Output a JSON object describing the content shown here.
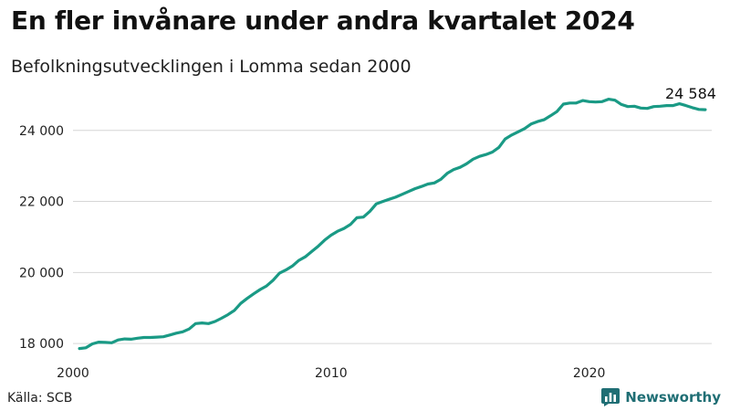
{
  "title": "En fler invånare under andra kvartalet 2024",
  "subtitle": "Befolkningsutvecklingen i Lomma sedan 2000",
  "source": "Källa: SCB",
  "brand": "Newsworthy",
  "colors": {
    "line": "#1a9a85",
    "grid": "#d6d6d6",
    "brand": "#1f6e74"
  },
  "chart_data": {
    "type": "line",
    "title": "En fler invånare under andra kvartalet 2024",
    "subtitle": "Befolkningsutvecklingen i Lomma sedan 2000",
    "xlabel": "",
    "ylabel": "",
    "x_ticks": [
      2000,
      2010,
      2020
    ],
    "x_tick_labels": [
      "2000",
      "2010",
      "2020"
    ],
    "y_ticks": [
      18000,
      20000,
      22000,
      24000
    ],
    "y_tick_labels": [
      "18 000",
      "20 000",
      "22 000",
      "24 000"
    ],
    "xlim": [
      2000,
      2024.75
    ],
    "ylim": [
      17900,
      25100
    ],
    "grid": "horizontal",
    "last_label": "24 584",
    "series": [
      {
        "x": [
          2000.25,
          2000.5,
          2000.75,
          2001,
          2001.25,
          2001.5,
          2001.75,
          2002,
          2002.25,
          2002.5,
          2002.75,
          2003,
          2003.25,
          2003.5,
          2003.75,
          2004,
          2004.25,
          2004.5,
          2004.75,
          2005,
          2005.25,
          2005.5,
          2005.75,
          2006,
          2006.25,
          2006.5,
          2006.75,
          2007,
          2007.25,
          2007.5,
          2007.75,
          2008,
          2008.25,
          2008.5,
          2008.75,
          2009,
          2009.25,
          2009.5,
          2009.75,
          2010,
          2010.25,
          2010.5,
          2010.75,
          2011,
          2011.25,
          2011.5,
          2011.75,
          2012,
          2012.25,
          2012.5,
          2012.75,
          2013,
          2013.25,
          2013.5,
          2013.75,
          2014,
          2014.25,
          2014.5,
          2014.75,
          2015,
          2015.25,
          2015.5,
          2015.75,
          2016,
          2016.25,
          2016.5,
          2016.75,
          2017,
          2017.25,
          2017.5,
          2017.75,
          2018,
          2018.25,
          2018.5,
          2018.75,
          2019,
          2019.25,
          2019.5,
          2019.75,
          2020,
          2020.25,
          2020.5,
          2020.75,
          2021,
          2021.25,
          2021.5,
          2021.75,
          2022,
          2022.25,
          2022.5,
          2022.75,
          2023,
          2023.25,
          2023.5,
          2023.75,
          2024,
          2024.25,
          2024.5
        ],
        "y": [
          17860,
          17880,
          17990,
          18040,
          18030,
          18020,
          18100,
          18130,
          18120,
          18150,
          18170,
          18170,
          18180,
          18190,
          18240,
          18290,
          18330,
          18410,
          18560,
          18580,
          18560,
          18620,
          18710,
          18810,
          18930,
          19130,
          19270,
          19400,
          19520,
          19620,
          19780,
          19980,
          20070,
          20180,
          20340,
          20440,
          20590,
          20740,
          20910,
          21050,
          21160,
          21240,
          21350,
          21540,
          21560,
          21720,
          21930,
          22000,
          22060,
          22120,
          22200,
          22280,
          22360,
          22420,
          22490,
          22520,
          22620,
          22790,
          22900,
          22960,
          23060,
          23190,
          23270,
          23320,
          23390,
          23520,
          23760,
          23870,
          23960,
          24050,
          24180,
          24250,
          24300,
          24410,
          24530,
          24740,
          24770,
          24770,
          24840,
          24810,
          24800,
          24810,
          24880,
          24850,
          24730,
          24670,
          24680,
          24630,
          24620,
          24670,
          24680,
          24700,
          24700,
          24750,
          24700,
          24640,
          24590,
          24584
        ]
      }
    ]
  }
}
